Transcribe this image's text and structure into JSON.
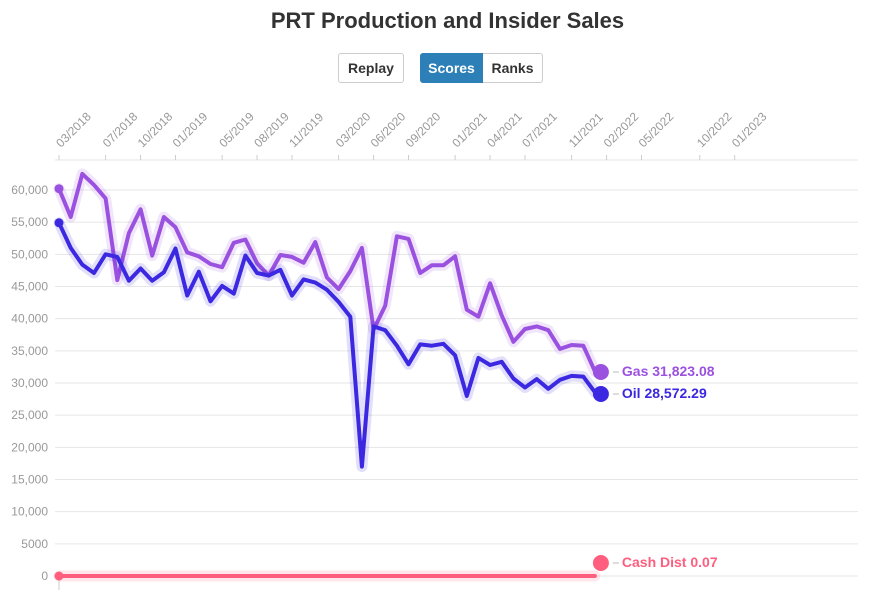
{
  "title": "PRT Production and Insider Sales",
  "buttons": {
    "replay": "Replay",
    "scores": "Scores",
    "ranks": "Ranks"
  },
  "colors": {
    "gas": "#9b51e0",
    "oil": "#3b28e0",
    "cash": "#ff5e7e",
    "active_button": "#2d7fb8"
  },
  "chart_data": {
    "type": "line",
    "title": "PRT Production and Insider Sales",
    "ylim": [
      0,
      65000
    ],
    "y_ticks": [
      0,
      5000,
      10000,
      15000,
      20000,
      25000,
      30000,
      35000,
      40000,
      45000,
      50000,
      55000,
      60000
    ],
    "y_tick_labels": [
      "0",
      "5000",
      "10,000",
      "15,000",
      "20,000",
      "25,000",
      "30,000",
      "35,000",
      "40,000",
      "45,000",
      "50,000",
      "55,000",
      "60,000"
    ],
    "x_tick_labels": [
      "03/2018",
      "07/2018",
      "10/2018",
      "01/2019",
      "05/2019",
      "08/2019",
      "11/2019",
      "03/2020",
      "06/2020",
      "09/2020",
      "01/2021",
      "04/2021",
      "07/2021",
      "11/2021",
      "02/2022",
      "05/2022",
      "10/2022",
      "01/2023"
    ],
    "x_tick_months": [
      0,
      4,
      7,
      10,
      14,
      17,
      20,
      24,
      27,
      30,
      34,
      37,
      40,
      44,
      47,
      50,
      55,
      58
    ],
    "grid": true,
    "series": [
      {
        "name": "Gas",
        "end_label": "Gas 31,823.08",
        "values": [
          60200,
          55800,
          62500,
          60800,
          58700,
          46000,
          53300,
          57000,
          49800,
          55800,
          54200,
          50300,
          49700,
          48500,
          48000,
          51800,
          52300,
          48600,
          46700,
          49900,
          49600,
          48700,
          51900,
          46400,
          44600,
          47400,
          51000,
          38300,
          42000,
          52800,
          52400,
          47100,
          48300,
          48300,
          49700,
          41400,
          40300,
          45500,
          40500,
          36400,
          38400,
          38800,
          38200,
          35300,
          35900,
          35800,
          31823
        ]
      },
      {
        "name": "Oil",
        "end_label": "Oil 28,572.29",
        "values": [
          54900,
          51000,
          48400,
          47100,
          50000,
          49600,
          45900,
          47800,
          45900,
          47200,
          50900,
          43600,
          47300,
          42700,
          45100,
          43900,
          49800,
          47100,
          46700,
          47600,
          43600,
          46100,
          45600,
          44500,
          42600,
          40300,
          17000,
          38800,
          38200,
          35800,
          32900,
          36000,
          35800,
          36100,
          34300,
          28000,
          33900,
          32800,
          33300,
          30700,
          29300,
          30600,
          29100,
          30500,
          31100,
          31000,
          28572
        ]
      },
      {
        "name": "Cash Dist",
        "end_label": "Cash Dist 0.07",
        "values": [
          0.07,
          0.07
        ]
      }
    ]
  }
}
